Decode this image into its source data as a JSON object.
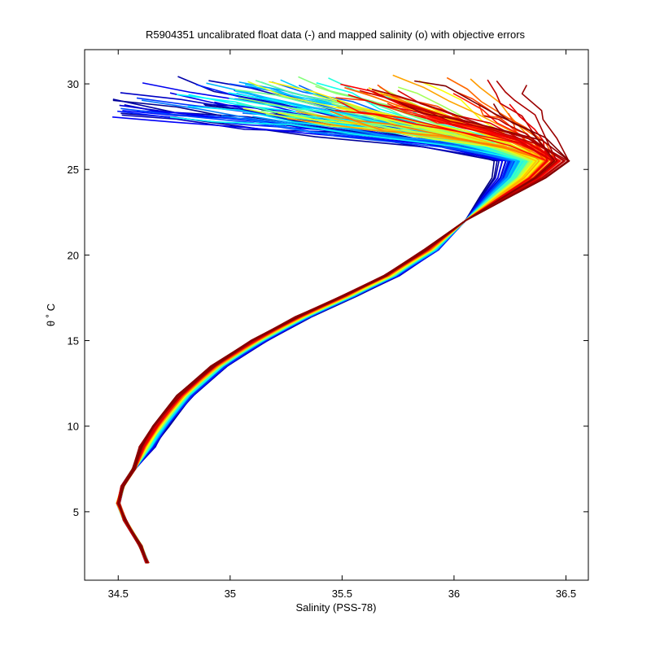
{
  "chart_data": {
    "type": "line",
    "title": "R5904351 uncalibrated float data (-) and mapped salinity (o) with objective errors",
    "xlabel": "Salinity (PSS-78)",
    "ylabel": "θ ˚ C",
    "xlim": [
      34.35,
      36.6
    ],
    "ylim": [
      1,
      32
    ],
    "xticks": [
      34.5,
      35,
      35.5,
      36,
      36.5
    ],
    "xtick_labels": [
      "34.5",
      "35",
      "35.5",
      "36",
      "36.5"
    ],
    "yticks": [
      5,
      10,
      15,
      20,
      25,
      30
    ],
    "ytick_labels": [
      "5",
      "10",
      "15",
      "20",
      "25",
      "30"
    ],
    "grid": false,
    "legend": "none",
    "colormap": "jet",
    "base_profile": [
      {
        "s": 34.63,
        "t": 2.0
      },
      {
        "s": 34.6,
        "t": 3.0
      },
      {
        "s": 34.53,
        "t": 4.5
      },
      {
        "s": 34.5,
        "t": 5.5
      },
      {
        "s": 34.52,
        "t": 6.5
      },
      {
        "s": 34.57,
        "t": 7.5
      },
      {
        "s": 34.63,
        "t": 8.8
      },
      {
        "s": 34.69,
        "t": 10.0
      },
      {
        "s": 34.8,
        "t": 11.8
      },
      {
        "s": 34.95,
        "t": 13.5
      },
      {
        "s": 35.13,
        "t": 15.0
      },
      {
        "s": 35.33,
        "t": 16.4
      },
      {
        "s": 35.53,
        "t": 17.6
      },
      {
        "s": 35.72,
        "t": 18.8
      },
      {
        "s": 35.9,
        "t": 20.3
      },
      {
        "s": 36.05,
        "t": 22.0
      },
      {
        "s": 36.15,
        "t": 23.5
      },
      {
        "s": 36.22,
        "t": 24.5
      },
      {
        "s": 36.25,
        "t": 25.5
      },
      {
        "s": 36.15,
        "t": 26.5
      },
      {
        "s": 35.95,
        "t": 27.3
      },
      {
        "s": 35.6,
        "t": 27.9
      },
      {
        "s": 35.2,
        "t": 28.4
      },
      {
        "s": 34.85,
        "t": 28.8
      }
    ],
    "profile_count": 120,
    "surface_salinity_range": [
      34.5,
      36.3
    ],
    "surface_temperature_range": [
      28.0,
      30.5
    ],
    "max_salinity_range": [
      36.17,
      36.5
    ]
  }
}
